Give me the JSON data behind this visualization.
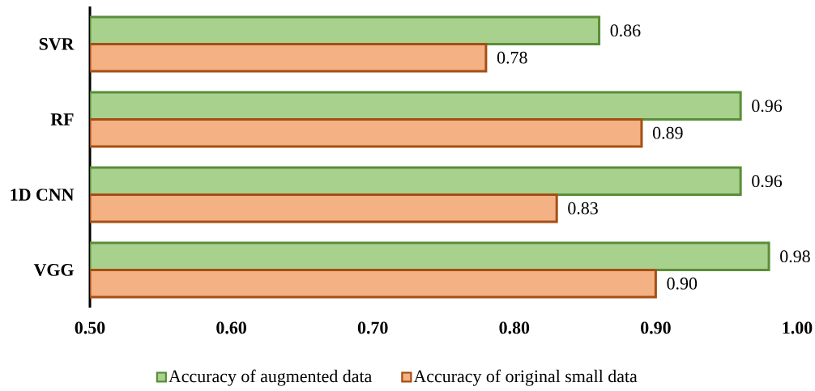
{
  "chart_data": {
    "type": "bar",
    "orientation": "horizontal",
    "categories": [
      "SVR",
      "RF",
      "1D CNN",
      "VGG"
    ],
    "series": [
      {
        "name": "Accuracy of augmented data",
        "color": "#a9d18e",
        "values": [
          0.86,
          0.96,
          0.96,
          0.98
        ],
        "value_labels": [
          "0.86",
          "0.96",
          "0.96",
          "0.98"
        ]
      },
      {
        "name": "Accuracy of original small data",
        "color": "#f4b183",
        "values": [
          0.78,
          0.89,
          0.83,
          0.9
        ],
        "value_labels": [
          "0.78",
          "0.89",
          "0.83",
          "0.90"
        ]
      }
    ],
    "xlim": [
      0.5,
      1.0
    ],
    "xticks": [
      {
        "value": 0.5,
        "label": "0.50"
      },
      {
        "value": 0.6,
        "label": "0.60"
      },
      {
        "value": 0.7,
        "label": "0.70"
      },
      {
        "value": 0.8,
        "label": "0.80"
      },
      {
        "value": 0.9,
        "label": "0.90"
      },
      {
        "value": 1.0,
        "label": "1.00"
      }
    ],
    "legend": "bottom"
  }
}
